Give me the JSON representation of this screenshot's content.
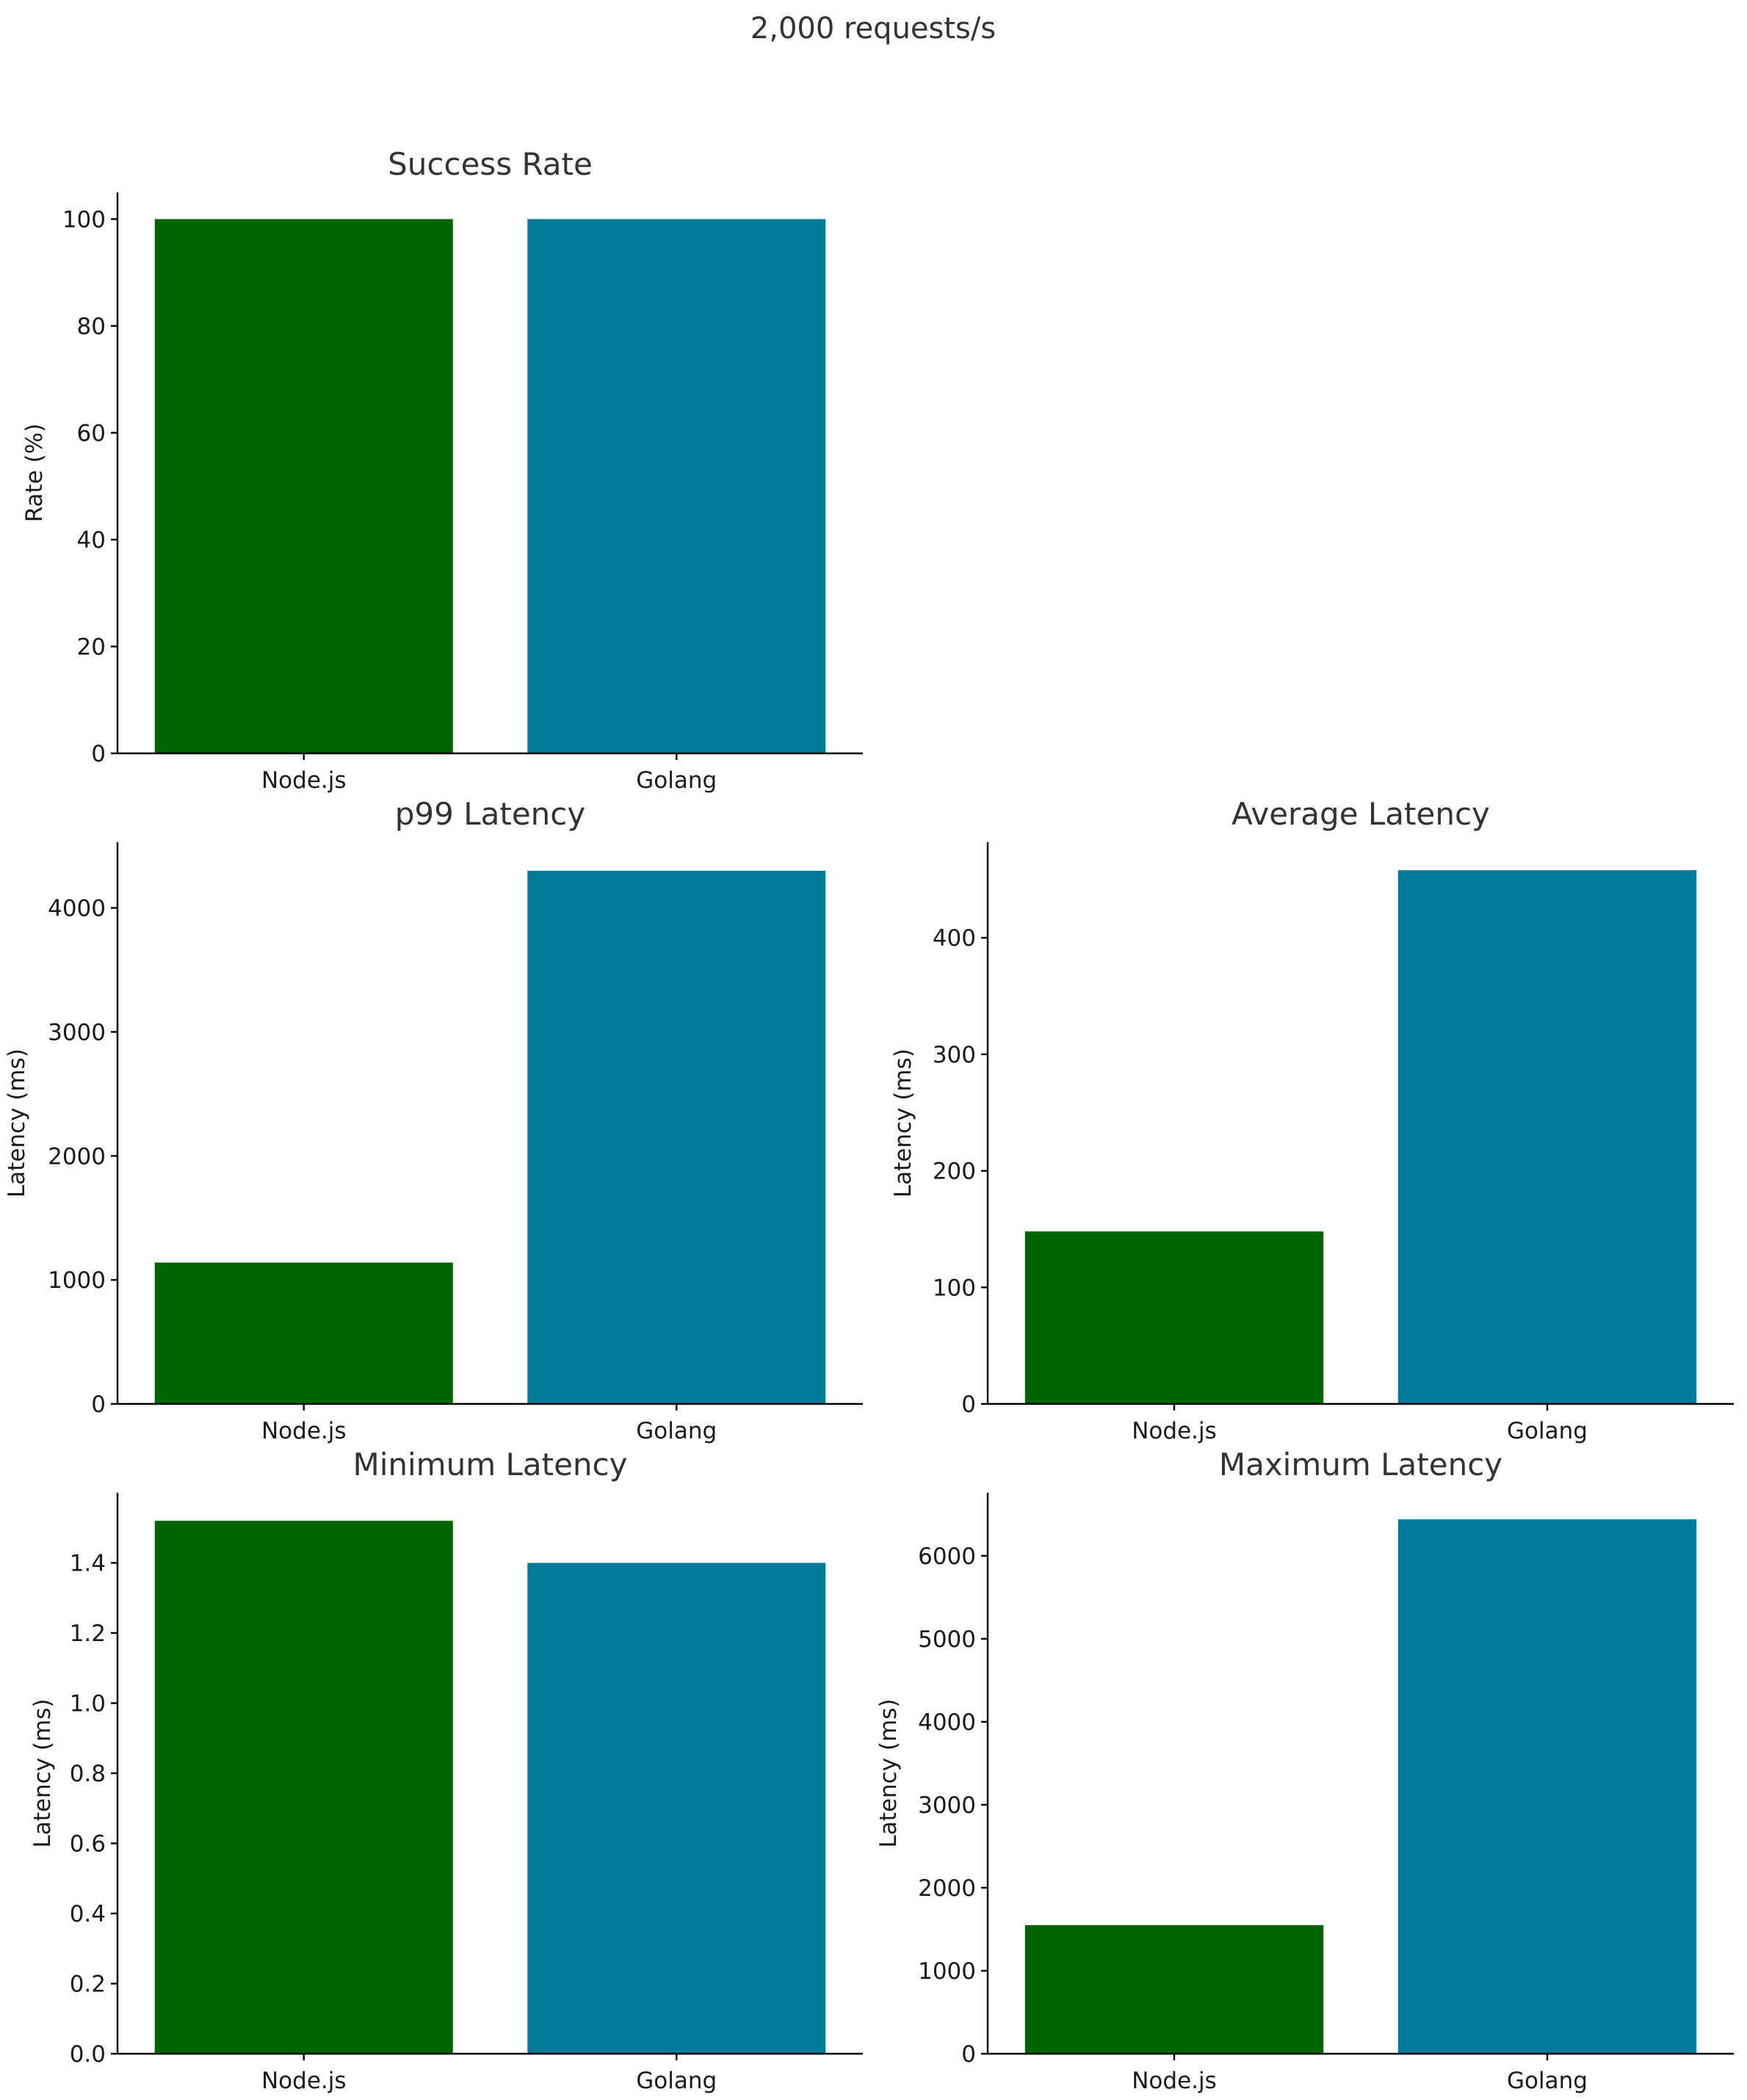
{
  "figure": {
    "title": "2,000 requests/s"
  },
  "colors": {
    "nodejs": "#006400",
    "golang": "#007B99"
  },
  "chart_data": [
    {
      "id": "success-rate",
      "type": "bar",
      "title": "Success Rate",
      "categories": [
        "Node.js",
        "Golang"
      ],
      "values": [
        100,
        100
      ],
      "ylabel": "Rate (%)",
      "ylim": [
        0,
        105
      ],
      "yticks": [
        0,
        20,
        40,
        60,
        80,
        100
      ],
      "ytick_labels": [
        "0",
        "20",
        "40",
        "60",
        "80",
        "100"
      ]
    },
    {
      "id": "p99-latency",
      "type": "bar",
      "title": "p99 Latency",
      "categories": [
        "Node.js",
        "Golang"
      ],
      "values": [
        1140,
        4300
      ],
      "ylabel": "Latency (ms)",
      "ylim": [
        0,
        4530
      ],
      "yticks": [
        0,
        1000,
        2000,
        3000,
        4000
      ],
      "ytick_labels": [
        "0",
        "1000",
        "2000",
        "3000",
        "4000"
      ]
    },
    {
      "id": "average-latency",
      "type": "bar",
      "title": "Average Latency",
      "categories": [
        "Node.js",
        "Golang"
      ],
      "values": [
        148,
        458
      ],
      "ylabel": "Latency (ms)",
      "ylim": [
        0,
        482
      ],
      "yticks": [
        0,
        100,
        200,
        300,
        400
      ],
      "ytick_labels": [
        "0",
        "100",
        "200",
        "300",
        "400"
      ]
    },
    {
      "id": "minimum-latency",
      "type": "bar",
      "title": "Minimum Latency",
      "categories": [
        "Node.js",
        "Golang"
      ],
      "values": [
        1.52,
        1.4
      ],
      "ylabel": "Latency (ms)",
      "ylim": [
        0,
        1.6
      ],
      "yticks": [
        0,
        0.2,
        0.4,
        0.6,
        0.8,
        1.0,
        1.2,
        1.4
      ],
      "ytick_labels": [
        "0.0",
        "0.2",
        "0.4",
        "0.6",
        "0.8",
        "1.0",
        "1.2",
        "1.4"
      ]
    },
    {
      "id": "maximum-latency",
      "type": "bar",
      "title": "Maximum Latency",
      "categories": [
        "Node.js",
        "Golang"
      ],
      "values": [
        1550,
        6440
      ],
      "ylabel": "Latency (ms)",
      "ylim": [
        0,
        6760
      ],
      "yticks": [
        0,
        1000,
        2000,
        3000,
        4000,
        5000,
        6000
      ],
      "ytick_labels": [
        "0",
        "1000",
        "2000",
        "3000",
        "4000",
        "5000",
        "6000"
      ]
    }
  ]
}
